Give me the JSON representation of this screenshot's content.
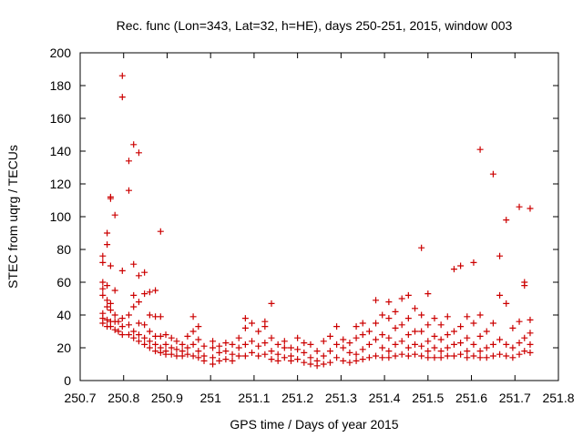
{
  "chart_data": {
    "type": "scatter",
    "title": "Rec. func (Lon=343, Lat=32, h=HE), days 250-251, 2015, window 003",
    "xlabel": "GPS time / Days of year 2015",
    "ylabel": "STEC from uqrg / TECUs",
    "xlim": [
      250.7,
      251.8
    ],
    "ylim": [
      0,
      200
    ],
    "x_ticks": [
      "250.7",
      "250.8",
      "250.9",
      "251",
      "251.1",
      "251.2",
      "251.3",
      "251.4",
      "251.5",
      "251.6",
      "251.7",
      "251.8"
    ],
    "y_ticks": [
      "0",
      "20",
      "40",
      "60",
      "80",
      "100",
      "120",
      "140",
      "160",
      "180",
      "200"
    ],
    "grid": false,
    "marker": "+",
    "marker_color": "#cc0000",
    "series": [
      {
        "points": [
          [
            250.752,
            76
          ],
          [
            250.752,
            72
          ],
          [
            250.752,
            60
          ],
          [
            250.752,
            56
          ],
          [
            250.752,
            52
          ],
          [
            250.752,
            41
          ],
          [
            250.752,
            38
          ],
          [
            250.752,
            35
          ],
          [
            250.762,
            90
          ],
          [
            250.762,
            83
          ],
          [
            250.762,
            58
          ],
          [
            250.762,
            49
          ],
          [
            250.762,
            45
          ],
          [
            250.762,
            37
          ],
          [
            250.762,
            33
          ],
          [
            250.77,
            112
          ],
          [
            250.77,
            111
          ],
          [
            250.77,
            70
          ],
          [
            250.77,
            47
          ],
          [
            250.77,
            43
          ],
          [
            250.77,
            36
          ],
          [
            250.77,
            33
          ],
          [
            250.78,
            101
          ],
          [
            250.78,
            55
          ],
          [
            250.78,
            40
          ],
          [
            250.78,
            36
          ],
          [
            250.78,
            31
          ],
          [
            250.788,
            36
          ],
          [
            250.788,
            30
          ],
          [
            250.797,
            186
          ],
          [
            250.797,
            173
          ],
          [
            250.797,
            67
          ],
          [
            250.797,
            38
          ],
          [
            250.797,
            33
          ],
          [
            250.797,
            28
          ],
          [
            250.812,
            134
          ],
          [
            250.812,
            116
          ],
          [
            250.812,
            40
          ],
          [
            250.812,
            34
          ],
          [
            250.812,
            28
          ],
          [
            250.823,
            144
          ],
          [
            250.823,
            71
          ],
          [
            250.823,
            52
          ],
          [
            250.823,
            45
          ],
          [
            250.823,
            30
          ],
          [
            250.823,
            26
          ],
          [
            250.835,
            139
          ],
          [
            250.835,
            64
          ],
          [
            250.835,
            48
          ],
          [
            250.835,
            35
          ],
          [
            250.835,
            28
          ],
          [
            250.835,
            24
          ],
          [
            250.848,
            66
          ],
          [
            250.848,
            53
          ],
          [
            250.848,
            34
          ],
          [
            250.848,
            26
          ],
          [
            250.848,
            22
          ],
          [
            250.86,
            54
          ],
          [
            250.86,
            40
          ],
          [
            250.86,
            30
          ],
          [
            250.86,
            24
          ],
          [
            250.86,
            20
          ],
          [
            250.873,
            55
          ],
          [
            250.873,
            39
          ],
          [
            250.873,
            27
          ],
          [
            250.873,
            22
          ],
          [
            250.873,
            18
          ],
          [
            250.885,
            91
          ],
          [
            250.885,
            39
          ],
          [
            250.885,
            27
          ],
          [
            250.885,
            20
          ],
          [
            250.885,
            17
          ],
          [
            250.897,
            28
          ],
          [
            250.897,
            22
          ],
          [
            250.897,
            18
          ],
          [
            250.897,
            16
          ],
          [
            250.91,
            26
          ],
          [
            250.91,
            20
          ],
          [
            250.91,
            16
          ],
          [
            250.922,
            24
          ],
          [
            250.922,
            19
          ],
          [
            250.922,
            15
          ],
          [
            250.935,
            22
          ],
          [
            250.935,
            18
          ],
          [
            250.935,
            15
          ],
          [
            250.947,
            27
          ],
          [
            250.947,
            20
          ],
          [
            250.947,
            16
          ],
          [
            250.96,
            39
          ],
          [
            250.96,
            30
          ],
          [
            250.96,
            22
          ],
          [
            250.96,
            15
          ],
          [
            250.972,
            33
          ],
          [
            250.972,
            25
          ],
          [
            250.972,
            18
          ],
          [
            250.972,
            14
          ],
          [
            250.985,
            21
          ],
          [
            250.985,
            15
          ],
          [
            250.985,
            12
          ],
          [
            251.005,
            24
          ],
          [
            251.005,
            20
          ],
          [
            251.005,
            14
          ],
          [
            251.005,
            10
          ],
          [
            251.02,
            21
          ],
          [
            251.02,
            17
          ],
          [
            251.02,
            12
          ],
          [
            251.035,
            23
          ],
          [
            251.035,
            18
          ],
          [
            251.035,
            13
          ],
          [
            251.05,
            22
          ],
          [
            251.05,
            16
          ],
          [
            251.05,
            12
          ],
          [
            251.065,
            26
          ],
          [
            251.065,
            20
          ],
          [
            251.065,
            15
          ],
          [
            251.08,
            38
          ],
          [
            251.08,
            32
          ],
          [
            251.08,
            22
          ],
          [
            251.08,
            15
          ],
          [
            251.095,
            35
          ],
          [
            251.095,
            24
          ],
          [
            251.095,
            17
          ],
          [
            251.11,
            30
          ],
          [
            251.11,
            21
          ],
          [
            251.11,
            15
          ],
          [
            251.125,
            36
          ],
          [
            251.125,
            33
          ],
          [
            251.125,
            23
          ],
          [
            251.125,
            16
          ],
          [
            251.14,
            47
          ],
          [
            251.14,
            26
          ],
          [
            251.14,
            18
          ],
          [
            251.14,
            13
          ],
          [
            251.155,
            22
          ],
          [
            251.155,
            16
          ],
          [
            251.155,
            12
          ],
          [
            251.17,
            24
          ],
          [
            251.17,
            20
          ],
          [
            251.17,
            14
          ],
          [
            251.185,
            20
          ],
          [
            251.185,
            15
          ],
          [
            251.185,
            12
          ],
          [
            251.2,
            26
          ],
          [
            251.2,
            19
          ],
          [
            251.2,
            13
          ],
          [
            251.215,
            23
          ],
          [
            251.215,
            17
          ],
          [
            251.215,
            11
          ],
          [
            251.23,
            22
          ],
          [
            251.23,
            14
          ],
          [
            251.23,
            10
          ],
          [
            251.245,
            18
          ],
          [
            251.245,
            12
          ],
          [
            251.245,
            9
          ],
          [
            251.26,
            24
          ],
          [
            251.26,
            15
          ],
          [
            251.26,
            10
          ],
          [
            251.275,
            27
          ],
          [
            251.275,
            18
          ],
          [
            251.275,
            11
          ],
          [
            251.29,
            33
          ],
          [
            251.29,
            22
          ],
          [
            251.29,
            14
          ],
          [
            251.305,
            25
          ],
          [
            251.305,
            20
          ],
          [
            251.305,
            12
          ],
          [
            251.32,
            23
          ],
          [
            251.32,
            17
          ],
          [
            251.32,
            11
          ],
          [
            251.335,
            33
          ],
          [
            251.335,
            26
          ],
          [
            251.335,
            16
          ],
          [
            251.335,
            12
          ],
          [
            251.35,
            35
          ],
          [
            251.35,
            28
          ],
          [
            251.35,
            19
          ],
          [
            251.35,
            13
          ],
          [
            251.365,
            30
          ],
          [
            251.365,
            22
          ],
          [
            251.365,
            14
          ],
          [
            251.38,
            49
          ],
          [
            251.38,
            35
          ],
          [
            251.38,
            25
          ],
          [
            251.38,
            15
          ],
          [
            251.395,
            40
          ],
          [
            251.395,
            28
          ],
          [
            251.395,
            20
          ],
          [
            251.395,
            14
          ],
          [
            251.41,
            48
          ],
          [
            251.41,
            38
          ],
          [
            251.41,
            26
          ],
          [
            251.41,
            18
          ],
          [
            251.41,
            14
          ],
          [
            251.425,
            42
          ],
          [
            251.425,
            32
          ],
          [
            251.425,
            22
          ],
          [
            251.425,
            15
          ],
          [
            251.44,
            50
          ],
          [
            251.44,
            34
          ],
          [
            251.44,
            24
          ],
          [
            251.44,
            16
          ],
          [
            251.455,
            52
          ],
          [
            251.455,
            38
          ],
          [
            251.455,
            28
          ],
          [
            251.455,
            20
          ],
          [
            251.455,
            15
          ],
          [
            251.47,
            44
          ],
          [
            251.47,
            30
          ],
          [
            251.47,
            22
          ],
          [
            251.47,
            16
          ],
          [
            251.485,
            81
          ],
          [
            251.485,
            40
          ],
          [
            251.485,
            30
          ],
          [
            251.485,
            21
          ],
          [
            251.485,
            15
          ],
          [
            251.5,
            53
          ],
          [
            251.5,
            34
          ],
          [
            251.5,
            24
          ],
          [
            251.5,
            18
          ],
          [
            251.5,
            14
          ],
          [
            251.515,
            38
          ],
          [
            251.515,
            27
          ],
          [
            251.515,
            20
          ],
          [
            251.515,
            14
          ],
          [
            251.53,
            34
          ],
          [
            251.53,
            25
          ],
          [
            251.53,
            18
          ],
          [
            251.53,
            14
          ],
          [
            251.545,
            39
          ],
          [
            251.545,
            28
          ],
          [
            251.545,
            20
          ],
          [
            251.545,
            15
          ],
          [
            251.56,
            68
          ],
          [
            251.56,
            30
          ],
          [
            251.56,
            22
          ],
          [
            251.56,
            15
          ],
          [
            251.575,
            70
          ],
          [
            251.575,
            33
          ],
          [
            251.575,
            23
          ],
          [
            251.575,
            16
          ],
          [
            251.59,
            39
          ],
          [
            251.59,
            26
          ],
          [
            251.59,
            18
          ],
          [
            251.59,
            14
          ],
          [
            251.605,
            72
          ],
          [
            251.605,
            35
          ],
          [
            251.605,
            22
          ],
          [
            251.605,
            15
          ],
          [
            251.62,
            141
          ],
          [
            251.62,
            40
          ],
          [
            251.62,
            27
          ],
          [
            251.62,
            18
          ],
          [
            251.62,
            14
          ],
          [
            251.635,
            30
          ],
          [
            251.635,
            20
          ],
          [
            251.635,
            14
          ],
          [
            251.65,
            126
          ],
          [
            251.65,
            35
          ],
          [
            251.65,
            22
          ],
          [
            251.65,
            15
          ],
          [
            251.665,
            76
          ],
          [
            251.665,
            52
          ],
          [
            251.665,
            25
          ],
          [
            251.665,
            16
          ],
          [
            251.68,
            98
          ],
          [
            251.68,
            47
          ],
          [
            251.68,
            22
          ],
          [
            251.68,
            15
          ],
          [
            251.695,
            32
          ],
          [
            251.695,
            20
          ],
          [
            251.695,
            14
          ],
          [
            251.71,
            106
          ],
          [
            251.71,
            36
          ],
          [
            251.71,
            23
          ],
          [
            251.71,
            16
          ],
          [
            251.722,
            60
          ],
          [
            251.722,
            58
          ],
          [
            251.722,
            26
          ],
          [
            251.722,
            18
          ],
          [
            251.735,
            105
          ],
          [
            251.735,
            37
          ],
          [
            251.735,
            29
          ],
          [
            251.735,
            22
          ],
          [
            251.735,
            17
          ]
        ]
      }
    ]
  }
}
